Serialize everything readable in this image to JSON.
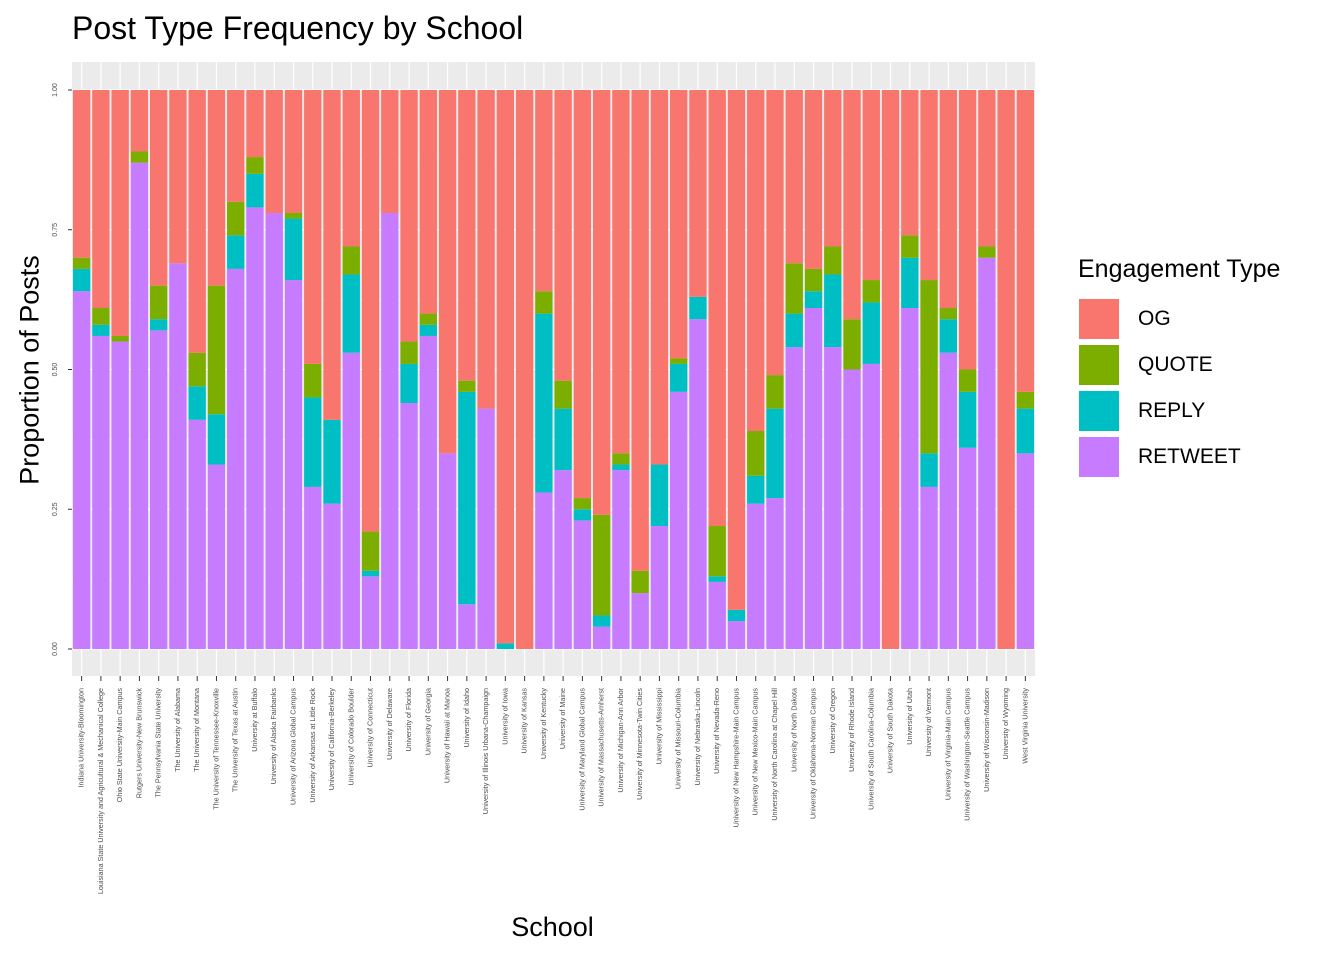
{
  "chart_data": {
    "type": "bar",
    "stacked": true,
    "title": "Post Type Frequency by School",
    "xlabel": "School",
    "ylabel": "Proportion of Posts",
    "ylim": [
      0,
      1
    ],
    "yticks": [
      "0.00",
      "0.25",
      "0.50",
      "0.75",
      "1.00"
    ],
    "grid": true,
    "legend_title": "Engagement Type",
    "legend_position": "right",
    "categories": [
      "Indiana University-Bloomington",
      "Louisiana State University and Agricultural & Mechanical College",
      "Ohio State University-Main Campus",
      "Rutgers University-New Brunswick",
      "The Pennsylvania State University",
      "The University of Alabama",
      "The University of Montana",
      "The University of Tennessee-Knoxville",
      "The University of Texas at Austin",
      "University at Buffalo",
      "University of Alaska Fairbanks",
      "University of Arizona Global Campus",
      "University of Arkansas at Little Rock",
      "University of California-Berkeley",
      "University of Colorado Boulder",
      "University of Connecticut",
      "University of Delaware",
      "University of Florida",
      "University of Georgia",
      "University of Hawaii at Manoa",
      "University of Idaho",
      "University of Illinois Urbana-Champaign",
      "University of Iowa",
      "University of Kansas",
      "University of Kentucky",
      "University of Maine",
      "University of Maryland Global Campus",
      "University of Massachusetts-Amherst",
      "University of Michigan-Ann Arbor",
      "University of Minnesota-Twin Cities",
      "University of Mississippi",
      "University of Missouri-Columbia",
      "University of Nebraska-Lincoln",
      "University of Nevada-Reno",
      "University of New Hampshire-Main Campus",
      "University of New Mexico-Main Campus",
      "University of North Carolina at Chapel Hill",
      "University of North Dakota",
      "University of Oklahoma-Norman Campus",
      "University of Oregon",
      "University of Rhode Island",
      "University of South Carolina-Columbia",
      "University of South Dakota",
      "University of Utah",
      "University of Vermont",
      "University of Virginia-Main Campus",
      "University of Washington-Seattle Campus",
      "University of Wisconsin-Madison",
      "University of Wyoming",
      "West Virginia University"
    ],
    "series": [
      {
        "name": "RETWEET",
        "color": "#C77CFF",
        "values": [
          0.64,
          0.56,
          0.55,
          0.87,
          0.57,
          0.69,
          0.41,
          0.33,
          0.68,
          0.79,
          0.78,
          0.66,
          0.29,
          0.26,
          0.53,
          0.13,
          0.78,
          0.44,
          0.56,
          0.35,
          0.08,
          0.43,
          0.0,
          0.0,
          0.28,
          0.32,
          0.23,
          0.04,
          0.32,
          0.1,
          0.22,
          0.46,
          0.59,
          0.12,
          0.05,
          0.26,
          0.27,
          0.54,
          0.61,
          0.54,
          0.5,
          0.51,
          0.0,
          0.61,
          0.29,
          0.53,
          0.36,
          0.7,
          0.0,
          0.35
        ]
      },
      {
        "name": "REPLY",
        "color": "#00BFC4",
        "values": [
          0.04,
          0.02,
          0.0,
          0.0,
          0.02,
          0.0,
          0.06,
          0.09,
          0.06,
          0.06,
          0.0,
          0.11,
          0.16,
          0.15,
          0.14,
          0.01,
          0.0,
          0.07,
          0.02,
          0.0,
          0.38,
          0.0,
          0.01,
          0.0,
          0.32,
          0.11,
          0.02,
          0.02,
          0.01,
          0.0,
          0.11,
          0.05,
          0.04,
          0.01,
          0.02,
          0.05,
          0.16,
          0.06,
          0.03,
          0.13,
          0.0,
          0.11,
          0.0,
          0.09,
          0.06,
          0.06,
          0.1,
          0.0,
          0.0,
          0.08
        ]
      },
      {
        "name": "QUOTE",
        "color": "#7CAE00",
        "values": [
          0.02,
          0.03,
          0.01,
          0.02,
          0.06,
          0.0,
          0.06,
          0.23,
          0.06,
          0.03,
          0.0,
          0.01,
          0.06,
          0.0,
          0.05,
          0.07,
          0.0,
          0.04,
          0.02,
          0.0,
          0.02,
          0.0,
          0.0,
          0.0,
          0.04,
          0.05,
          0.02,
          0.18,
          0.02,
          0.04,
          0.0,
          0.01,
          0.0,
          0.09,
          0.0,
          0.08,
          0.06,
          0.09,
          0.04,
          0.05,
          0.09,
          0.04,
          0.0,
          0.04,
          0.31,
          0.02,
          0.04,
          0.02,
          0.0,
          0.03
        ]
      },
      {
        "name": "OG",
        "color": "#F8766D",
        "values": [
          0.3,
          0.39,
          0.44,
          0.11,
          0.35,
          0.31,
          0.47,
          0.35,
          0.2,
          0.12,
          0.22,
          0.22,
          0.49,
          0.59,
          0.28,
          0.79,
          0.22,
          0.45,
          0.4,
          0.65,
          0.52,
          0.57,
          0.99,
          1.0,
          0.36,
          0.52,
          0.73,
          0.76,
          0.65,
          0.86,
          0.67,
          0.48,
          0.37,
          0.78,
          0.93,
          0.61,
          0.51,
          0.31,
          0.32,
          0.28,
          0.41,
          0.34,
          1.0,
          0.26,
          0.34,
          0.39,
          0.5,
          0.28,
          1.0,
          0.54
        ]
      }
    ]
  }
}
